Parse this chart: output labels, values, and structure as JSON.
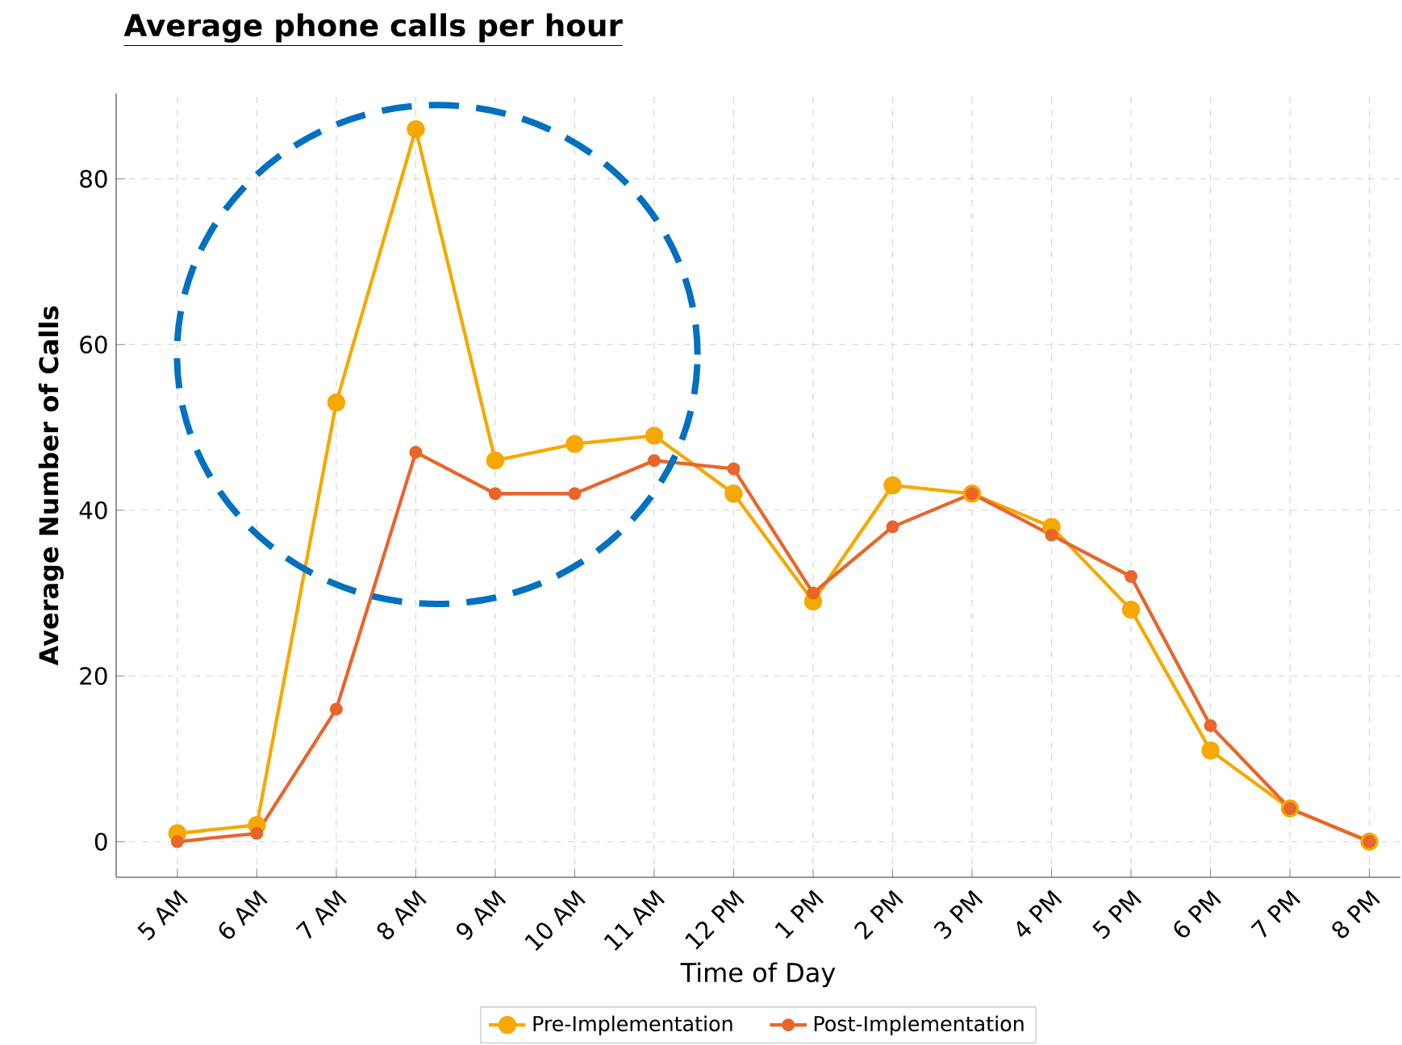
{
  "chart_data": {
    "type": "line",
    "title": "Average phone calls per hour",
    "xlabel": "Time of Day",
    "ylabel": "Average Number of Calls",
    "categories": [
      "5 AM",
      "6 AM",
      "7 AM",
      "8 AM",
      "9 AM",
      "10 AM",
      "11 AM",
      "12 PM",
      "1 PM",
      "2 PM",
      "3 PM",
      "4 PM",
      "5 PM",
      "6 PM",
      "7 PM",
      "8 PM"
    ],
    "series": [
      {
        "name": "Pre-Implementation",
        "color": "#f5a800",
        "values": [
          1,
          2,
          53,
          86,
          46,
          48,
          49,
          42,
          29,
          43,
          42,
          38,
          28,
          11,
          4,
          0
        ]
      },
      {
        "name": "Post-Implementation",
        "color": "#e8652b",
        "values": [
          0,
          1,
          16,
          47,
          42,
          42,
          46,
          45,
          30,
          38,
          42,
          37,
          32,
          14,
          4,
          0
        ]
      }
    ],
    "ylim": [
      -4.3,
      90.3
    ],
    "yticks": [
      0,
      20,
      40,
      60,
      80
    ],
    "grid": true,
    "legend": "bottom",
    "marker": "circle",
    "line_style": "solid"
  }
}
